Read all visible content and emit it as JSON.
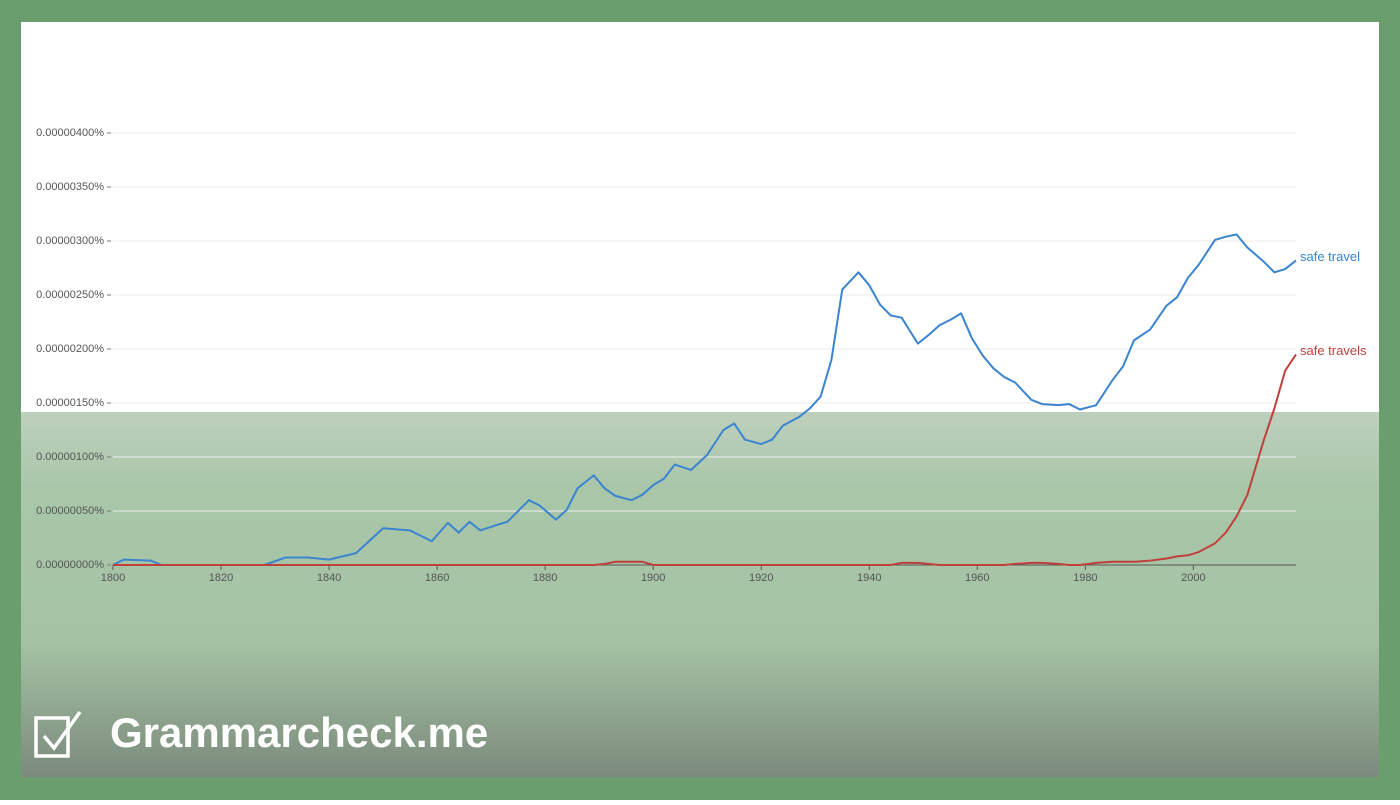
{
  "brand": "Grammarcheck.me",
  "chart_data": {
    "type": "line",
    "x": [
      1800,
      1802,
      1807,
      1809,
      1828,
      1832,
      1836,
      1840,
      1845,
      1850,
      1855,
      1859,
      1862,
      1864,
      1866,
      1868,
      1871,
      1873,
      1875,
      1877,
      1879,
      1882,
      1884,
      1886,
      1889,
      1891,
      1893,
      1896,
      1898,
      1900,
      1902,
      1904,
      1907,
      1910,
      1913,
      1915,
      1917,
      1920,
      1922,
      1924,
      1927,
      1929,
      1931,
      1933,
      1935,
      1938,
      1940,
      1942,
      1944,
      1946,
      1949,
      1951,
      1953,
      1955,
      1957,
      1959,
      1961,
      1963,
      1965,
      1967,
      1970,
      1972,
      1975,
      1977,
      1979,
      1982,
      1985,
      1987,
      1989,
      1992,
      1995,
      1997,
      1999,
      2001,
      2004,
      2006,
      2008,
      2010,
      2013,
      2015,
      2017,
      2019
    ],
    "series": [
      {
        "name": "safe travel",
        "color": "#3a84d0",
        "values": [
          0,
          5e-08,
          4e-08,
          0,
          0,
          7e-08,
          7e-08,
          5e-08,
          1.1e-07,
          3.4e-07,
          3.2e-07,
          2.2e-07,
          3.9e-07,
          3e-07,
          4e-07,
          3.2e-07,
          3.7e-07,
          4e-07,
          5e-07,
          6e-07,
          5.5e-07,
          4.2e-07,
          5.1e-07,
          7.1e-07,
          8.3e-07,
          7.1e-07,
          6.4e-07,
          6e-07,
          6.5e-07,
          7.4e-07,
          8e-07,
          9.3e-07,
          8.8e-07,
          1.02e-06,
          1.25e-06,
          1.31e-06,
          1.16e-06,
          1.12e-06,
          1.16e-06,
          1.29e-06,
          1.37e-06,
          1.45e-06,
          1.56e-06,
          1.9e-06,
          2.55e-06,
          2.71e-06,
          2.59e-06,
          2.41e-06,
          2.31e-06,
          2.29e-06,
          2.05e-06,
          2.13e-06,
          2.22e-06,
          2.27e-06,
          2.33e-06,
          2.1e-06,
          1.94e-06,
          1.82e-06,
          1.74e-06,
          1.69e-06,
          1.53e-06,
          1.49e-06,
          1.48e-06,
          1.49e-06,
          1.44e-06,
          1.48e-06,
          1.71e-06,
          1.84e-06,
          2.08e-06,
          2.18e-06,
          2.4e-06,
          2.48e-06,
          2.66e-06,
          2.78e-06,
          3.01e-06,
          3.04e-06,
          3.06e-06,
          2.94e-06,
          2.81e-06,
          2.71e-06,
          2.74e-06,
          2.82e-06
        ]
      },
      {
        "name": "safe travels",
        "color": "#c0403c",
        "values": [
          0,
          0,
          0,
          0,
          0,
          0,
          0,
          0,
          0,
          0,
          0,
          0,
          0,
          0,
          0,
          0,
          0,
          0,
          0,
          0,
          0,
          0,
          0,
          0,
          0,
          1e-08,
          3e-08,
          3e-08,
          3e-08,
          0,
          0,
          0,
          0,
          0,
          0,
          0,
          0,
          0,
          0,
          0,
          0,
          0,
          0,
          0,
          0,
          0,
          0,
          0,
          0,
          2e-08,
          2e-08,
          1e-08,
          0,
          0,
          0,
          0,
          0,
          0,
          0,
          1e-08,
          2e-08,
          2e-08,
          1e-08,
          0,
          0,
          2e-08,
          3e-08,
          3e-08,
          3e-08,
          4e-08,
          6e-08,
          8e-08,
          9e-08,
          1.2e-07,
          2e-07,
          3e-07,
          4.5e-07,
          6.5e-07,
          1.15e-06,
          1.45e-06,
          1.8e-06,
          1.95e-06
        ]
      }
    ],
    "xlim": [
      1800,
      2019
    ],
    "xticks": [
      1800,
      1820,
      1840,
      1860,
      1880,
      1900,
      1920,
      1940,
      1960,
      1980,
      2000
    ],
    "ylim": [
      0,
      4e-06
    ],
    "yticks": [
      {
        "value": 0,
        "label": "0.00000000%"
      },
      {
        "value": 5e-07,
        "label": "0.00000050%"
      },
      {
        "value": 1e-06,
        "label": "0.00000100%"
      },
      {
        "value": 1.5e-06,
        "label": "0.00000150%"
      },
      {
        "value": 2e-06,
        "label": "0.00000200%"
      },
      {
        "value": 2.5e-06,
        "label": "0.00000250%"
      },
      {
        "value": 3e-06,
        "label": "0.00000300%"
      },
      {
        "value": 3.5e-06,
        "label": "0.00000350%"
      },
      {
        "value": 4e-06,
        "label": "0.00000400%"
      }
    ],
    "grid": true
  }
}
